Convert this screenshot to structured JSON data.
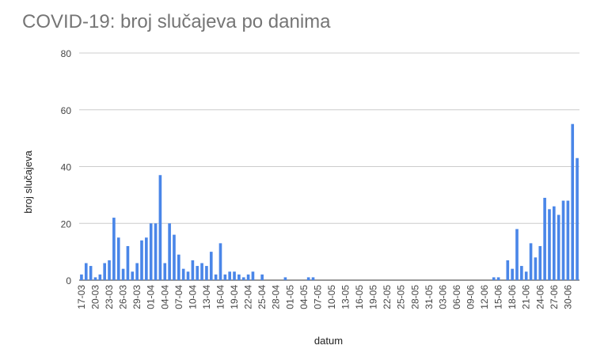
{
  "chart_data": {
    "type": "bar",
    "title": "COVID-19: broj slučajeva po danima",
    "xlabel": "datum",
    "ylabel": "broj slučajeva",
    "ylim": [
      0,
      80
    ],
    "yticks": [
      0,
      20,
      40,
      60,
      80
    ],
    "grid": true,
    "legend": "none",
    "bar_color": "#4a86e8",
    "x_tick_labels": [
      "17-03",
      "20-03",
      "23-03",
      "26-03",
      "29-03",
      "01-04",
      "04-04",
      "07-04",
      "10-04",
      "13-04",
      "16-04",
      "19-04",
      "22-04",
      "25-04",
      "28-04",
      "01-05",
      "04-05",
      "07-05",
      "10-05",
      "13-05",
      "16-05",
      "19-05",
      "22-05",
      "25-05",
      "28-05",
      "31-05",
      "03-06",
      "06-06",
      "09-06",
      "12-06",
      "15-06",
      "18-06",
      "21-06",
      "24-06",
      "27-06",
      "30-06"
    ],
    "start_date": "17-03",
    "values": [
      2,
      6,
      5,
      1,
      2,
      6,
      7,
      22,
      15,
      4,
      12,
      3,
      6,
      14,
      15,
      20,
      20,
      37,
      6,
      20,
      16,
      9,
      4,
      3,
      7,
      5,
      6,
      5,
      10,
      2,
      13,
      2,
      3,
      3,
      2,
      1,
      2,
      3,
      0,
      2,
      0,
      0,
      0,
      0,
      1,
      0,
      0,
      0,
      0,
      1,
      1,
      0,
      0,
      0,
      0,
      0,
      0,
      0,
      0,
      0,
      0,
      0,
      0,
      0,
      0,
      0,
      0,
      0,
      0,
      0,
      0,
      0,
      0,
      0,
      0,
      0,
      0,
      0,
      0,
      0,
      0,
      0,
      0,
      0,
      0,
      0,
      0,
      0,
      0,
      1,
      1,
      0,
      7,
      4,
      18,
      5,
      3,
      13,
      8,
      12,
      29,
      25,
      26,
      23,
      28,
      28,
      55,
      43
    ]
  }
}
